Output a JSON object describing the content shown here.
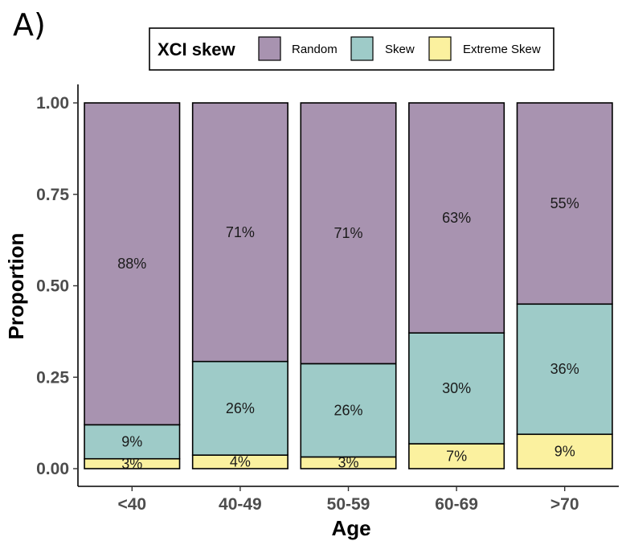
{
  "panel_label": "A)",
  "legend": {
    "title": "XCI skew",
    "items": [
      "Random",
      "Skew",
      "Extreme Skew"
    ]
  },
  "colors": {
    "Random": "#a893b0",
    "Skew": "#9ecbc8",
    "Extreme Skew": "#fbf19f",
    "outline": "#000000",
    "axis": "#000000",
    "tick_text": "#4d4d4d"
  },
  "chart_data": {
    "type": "bar",
    "stacked": true,
    "xlabel": "Age",
    "ylabel": "Proportion",
    "categories": [
      "<40",
      "40-49",
      "50-59",
      "60-69",
      ">70"
    ],
    "ylim": [
      0,
      1
    ],
    "yticks": [
      0.0,
      0.25,
      0.5,
      0.75,
      1.0
    ],
    "ytick_labels": [
      "0.00",
      "0.25",
      "0.50",
      "0.75",
      "1.00"
    ],
    "legend_position": "top",
    "grid": false,
    "series": [
      {
        "name": "Extreme Skew",
        "values": [
          0.027,
          0.037,
          0.032,
          0.068,
          0.094
        ],
        "labels": [
          "3%",
          "4%",
          "3%",
          "7%",
          "9%"
        ]
      },
      {
        "name": "Skew",
        "values": [
          0.093,
          0.256,
          0.255,
          0.303,
          0.356
        ],
        "labels": [
          "9%",
          "26%",
          "26%",
          "30%",
          "36%"
        ]
      },
      {
        "name": "Random",
        "values": [
          0.88,
          0.707,
          0.713,
          0.629,
          0.55
        ],
        "labels": [
          "88%",
          "71%",
          "71%",
          "63%",
          "55%"
        ]
      }
    ]
  }
}
